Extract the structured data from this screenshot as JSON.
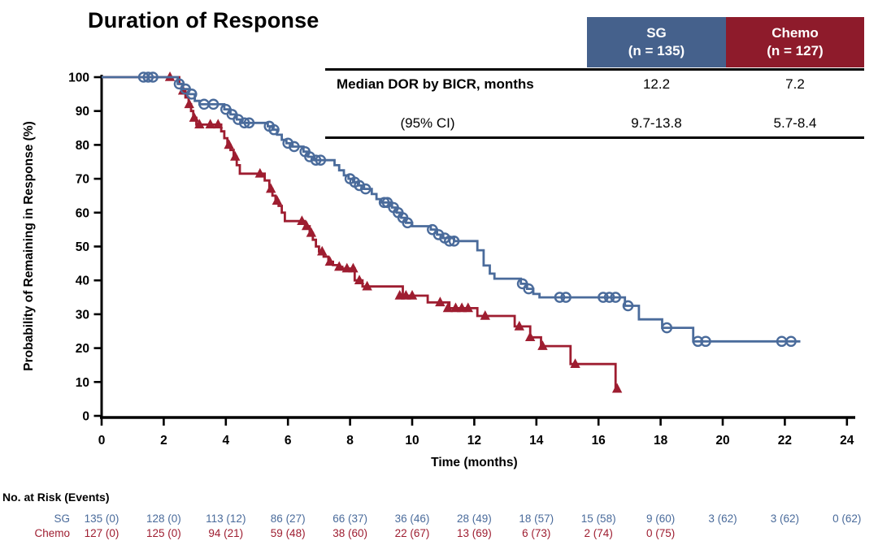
{
  "title": "Duration of Response",
  "colors": {
    "sg_curve": "#4A6B9B",
    "sg_box": "#45618C",
    "chemo_curve": "#9E1D30",
    "chemo_box": "#8E1B2B",
    "axis": "#000000"
  },
  "summary_table": {
    "columns": [
      {
        "label": "SG",
        "n_label": "(n = 135)"
      },
      {
        "label": "Chemo",
        "n_label": "(n = 127)"
      }
    ],
    "rows": [
      {
        "label": "Median DOR by BICR, months",
        "values": [
          "12.2",
          "7.2"
        ]
      },
      {
        "label": "(95% CI)",
        "values": [
          "9.7-13.8",
          "5.7-8.4"
        ]
      }
    ]
  },
  "chart_data": {
    "type": "line",
    "subtype": "kaplan-meier-step",
    "title": "Duration of Response",
    "xlabel": "Time (months)",
    "ylabel": "Probability of Remaining in Response (%)",
    "xlim": [
      0,
      24
    ],
    "ylim": [
      0,
      100
    ],
    "xticks": [
      0,
      2,
      4,
      6,
      8,
      10,
      12,
      14,
      16,
      18,
      20,
      22,
      24
    ],
    "yticks": [
      0,
      10,
      20,
      30,
      40,
      50,
      60,
      70,
      80,
      90,
      100
    ],
    "grid": false,
    "legend": "none",
    "series": [
      {
        "name": "Chemo",
        "color": "#9E1D30",
        "marker": "triangle",
        "steps": [
          [
            0,
            100
          ],
          [
            2.5,
            98
          ],
          [
            2.6,
            96
          ],
          [
            2.7,
            94
          ],
          [
            2.8,
            92
          ],
          [
            2.88,
            90
          ],
          [
            2.95,
            88
          ],
          [
            3.05,
            86
          ],
          [
            3.85,
            84
          ],
          [
            3.95,
            82
          ],
          [
            4.05,
            80
          ],
          [
            4.15,
            78.5
          ],
          [
            4.25,
            76.5
          ],
          [
            4.35,
            74
          ],
          [
            4.45,
            71.5
          ],
          [
            5.25,
            69.5
          ],
          [
            5.4,
            67
          ],
          [
            5.5,
            65
          ],
          [
            5.6,
            63.5
          ],
          [
            5.7,
            62
          ],
          [
            5.8,
            60
          ],
          [
            5.9,
            57.5
          ],
          [
            6.55,
            56
          ],
          [
            6.7,
            54
          ],
          [
            6.8,
            52
          ],
          [
            6.9,
            50
          ],
          [
            7.0,
            48.5
          ],
          [
            7.15,
            47
          ],
          [
            7.3,
            45.5
          ],
          [
            7.45,
            44.5
          ],
          [
            7.6,
            44
          ],
          [
            7.75,
            43.5
          ],
          [
            8.15,
            40
          ],
          [
            8.4,
            38.2
          ],
          [
            9.7,
            35.5
          ],
          [
            10.5,
            33.5
          ],
          [
            11.2,
            31.8
          ],
          [
            12.1,
            29.5
          ],
          [
            13.3,
            26.4
          ],
          [
            13.8,
            23.2
          ],
          [
            14.15,
            20.6
          ],
          [
            15.1,
            15.3
          ],
          [
            16.55,
            8
          ],
          [
            16.65,
            8
          ]
        ],
        "censors": [
          [
            2.2,
            100
          ],
          [
            2.62,
            96
          ],
          [
            2.82,
            92
          ],
          [
            2.98,
            88
          ],
          [
            3.15,
            86
          ],
          [
            3.5,
            86
          ],
          [
            3.75,
            86
          ],
          [
            4.1,
            80
          ],
          [
            4.3,
            76.5
          ],
          [
            5.1,
            71.5
          ],
          [
            5.45,
            67
          ],
          [
            5.65,
            63.5
          ],
          [
            6.45,
            57.5
          ],
          [
            6.6,
            56
          ],
          [
            6.75,
            54
          ],
          [
            7.1,
            48.5
          ],
          [
            7.35,
            45.5
          ],
          [
            7.65,
            44
          ],
          [
            7.9,
            43.5
          ],
          [
            8.1,
            43.5
          ],
          [
            8.3,
            40
          ],
          [
            8.55,
            38.2
          ],
          [
            9.6,
            35.5
          ],
          [
            9.8,
            35.5
          ],
          [
            10.0,
            35.5
          ],
          [
            10.9,
            33.5
          ],
          [
            11.15,
            31.8
          ],
          [
            11.4,
            31.8
          ],
          [
            11.6,
            31.8
          ],
          [
            11.8,
            31.8
          ],
          [
            12.35,
            29.5
          ],
          [
            13.45,
            26.4
          ],
          [
            13.8,
            23.2
          ],
          [
            14.2,
            20.6
          ],
          [
            15.25,
            15.3
          ],
          [
            16.6,
            8
          ]
        ]
      },
      {
        "name": "SG",
        "color": "#4A6B9B",
        "marker": "circle",
        "steps": [
          [
            0,
            100
          ],
          [
            2.45,
            98
          ],
          [
            2.6,
            96.5
          ],
          [
            2.8,
            95
          ],
          [
            3.0,
            93
          ],
          [
            3.15,
            92
          ],
          [
            3.95,
            90.5
          ],
          [
            4.15,
            89
          ],
          [
            4.35,
            87.5
          ],
          [
            4.5,
            86.5
          ],
          [
            5.35,
            85.5
          ],
          [
            5.5,
            84.5
          ],
          [
            5.65,
            83
          ],
          [
            5.8,
            81.5
          ],
          [
            5.95,
            80.5
          ],
          [
            6.15,
            79.5
          ],
          [
            6.5,
            78
          ],
          [
            6.65,
            76.5
          ],
          [
            6.85,
            75.5
          ],
          [
            7.5,
            74
          ],
          [
            7.65,
            72.5
          ],
          [
            7.8,
            71
          ],
          [
            7.95,
            70
          ],
          [
            8.1,
            69
          ],
          [
            8.25,
            68
          ],
          [
            8.45,
            67
          ],
          [
            8.7,
            65.5
          ],
          [
            8.85,
            64
          ],
          [
            9.0,
            63
          ],
          [
            9.35,
            61.5
          ],
          [
            9.5,
            60
          ],
          [
            9.65,
            58.5
          ],
          [
            9.8,
            57
          ],
          [
            10.0,
            56
          ],
          [
            10.6,
            55
          ],
          [
            10.8,
            53.5
          ],
          [
            11.0,
            52.5
          ],
          [
            11.35,
            51.6
          ],
          [
            12.1,
            48.9
          ],
          [
            12.3,
            44.4
          ],
          [
            12.5,
            42
          ],
          [
            12.65,
            40.5
          ],
          [
            13.5,
            39
          ],
          [
            13.7,
            37.5
          ],
          [
            13.9,
            36
          ],
          [
            14.1,
            35
          ],
          [
            16.85,
            32.5
          ],
          [
            17.3,
            28.5
          ],
          [
            18.05,
            26
          ],
          [
            19.05,
            22
          ],
          [
            22.5,
            22
          ]
        ],
        "censors": [
          [
            1.35,
            100
          ],
          [
            1.5,
            100
          ],
          [
            1.65,
            100
          ],
          [
            2.5,
            98
          ],
          [
            2.7,
            96.5
          ],
          [
            2.9,
            95
          ],
          [
            3.3,
            92
          ],
          [
            3.6,
            92
          ],
          [
            4.0,
            90.5
          ],
          [
            4.2,
            89
          ],
          [
            4.4,
            87.5
          ],
          [
            4.6,
            86.5
          ],
          [
            4.75,
            86.5
          ],
          [
            5.4,
            85.5
          ],
          [
            5.55,
            84.5
          ],
          [
            6.0,
            80.5
          ],
          [
            6.2,
            79.5
          ],
          [
            6.55,
            78
          ],
          [
            6.7,
            76.5
          ],
          [
            6.9,
            75.5
          ],
          [
            7.05,
            75.5
          ],
          [
            8.0,
            70
          ],
          [
            8.15,
            69
          ],
          [
            8.3,
            68
          ],
          [
            8.5,
            67
          ],
          [
            9.1,
            63
          ],
          [
            9.2,
            63
          ],
          [
            9.4,
            61.5
          ],
          [
            9.55,
            60
          ],
          [
            9.7,
            58.5
          ],
          [
            9.85,
            57
          ],
          [
            10.65,
            55
          ],
          [
            10.85,
            53.5
          ],
          [
            11.05,
            52.5
          ],
          [
            11.2,
            51.6
          ],
          [
            11.35,
            51.6
          ],
          [
            13.55,
            39
          ],
          [
            13.75,
            37.5
          ],
          [
            14.75,
            35
          ],
          [
            14.95,
            35
          ],
          [
            16.15,
            35
          ],
          [
            16.35,
            35
          ],
          [
            16.55,
            35
          ],
          [
            16.95,
            32.5
          ],
          [
            18.2,
            26
          ],
          [
            19.2,
            22
          ],
          [
            19.45,
            22
          ],
          [
            21.9,
            22
          ],
          [
            22.2,
            22
          ]
        ]
      }
    ]
  },
  "risk_table": {
    "title": "No. at Risk (Events)",
    "rows": [
      {
        "label": "SG",
        "color": "#4A6B9B",
        "values": [
          "135 (0)",
          "128 (0)",
          "113 (12)",
          "86 (27)",
          "66 (37)",
          "36 (46)",
          "28 (49)",
          "18 (57)",
          "15 (58)",
          "9 (60)",
          "3 (62)",
          "3 (62)",
          "0 (62)"
        ]
      },
      {
        "label": "Chemo",
        "color": "#9E1D30",
        "values": [
          "127 (0)",
          "125 (0)",
          "94 (21)",
          "59 (48)",
          "38 (60)",
          "22 (67)",
          "13 (69)",
          "6 (73)",
          "2 (74)",
          "0 (75)"
        ]
      }
    ]
  }
}
